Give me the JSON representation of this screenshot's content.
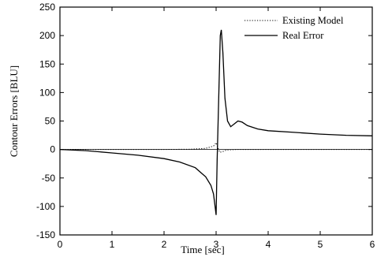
{
  "chart_data": {
    "type": "line",
    "xlabel": "Time [sec]",
    "ylabel": "Contour Errors [BLU]",
    "xlim": [
      0,
      6
    ],
    "ylim": [
      -150,
      250
    ],
    "xticks": [
      0,
      1,
      2,
      3,
      4,
      5,
      6
    ],
    "yticks": [
      -150,
      -100,
      -50,
      0,
      50,
      100,
      150,
      200,
      250
    ],
    "grid": false,
    "legend": {
      "placement": "top-right"
    },
    "series": [
      {
        "name": "Existing Model",
        "style": "dotted",
        "x": [
          0,
          0.5,
          1,
          1.5,
          2,
          2.5,
          2.8,
          2.95,
          3.0,
          3.03,
          3.07,
          3.12,
          3.2,
          3.4,
          3.7,
          4,
          5,
          6
        ],
        "y": [
          0,
          0,
          0,
          0,
          0,
          0.5,
          2,
          6,
          12,
          4,
          -5,
          -4,
          -1,
          0,
          0,
          0,
          0,
          0
        ]
      },
      {
        "name": "Real Error",
        "style": "solid",
        "x": [
          0,
          0.5,
          1,
          1.5,
          2,
          2.3,
          2.6,
          2.8,
          2.9,
          2.95,
          2.98,
          3.0,
          3.02,
          3.05,
          3.08,
          3.1,
          3.13,
          3.17,
          3.22,
          3.28,
          3.35,
          3.42,
          3.5,
          3.6,
          3.8,
          4,
          4.5,
          5,
          5.5,
          6
        ],
        "y": [
          0,
          -2,
          -6,
          -10,
          -16,
          -22,
          -32,
          -48,
          -63,
          -78,
          -100,
          -115,
          -20,
          90,
          200,
          210,
          170,
          90,
          50,
          40,
          45,
          50,
          48,
          42,
          36,
          33,
          30,
          27,
          25,
          24
        ]
      }
    ]
  }
}
